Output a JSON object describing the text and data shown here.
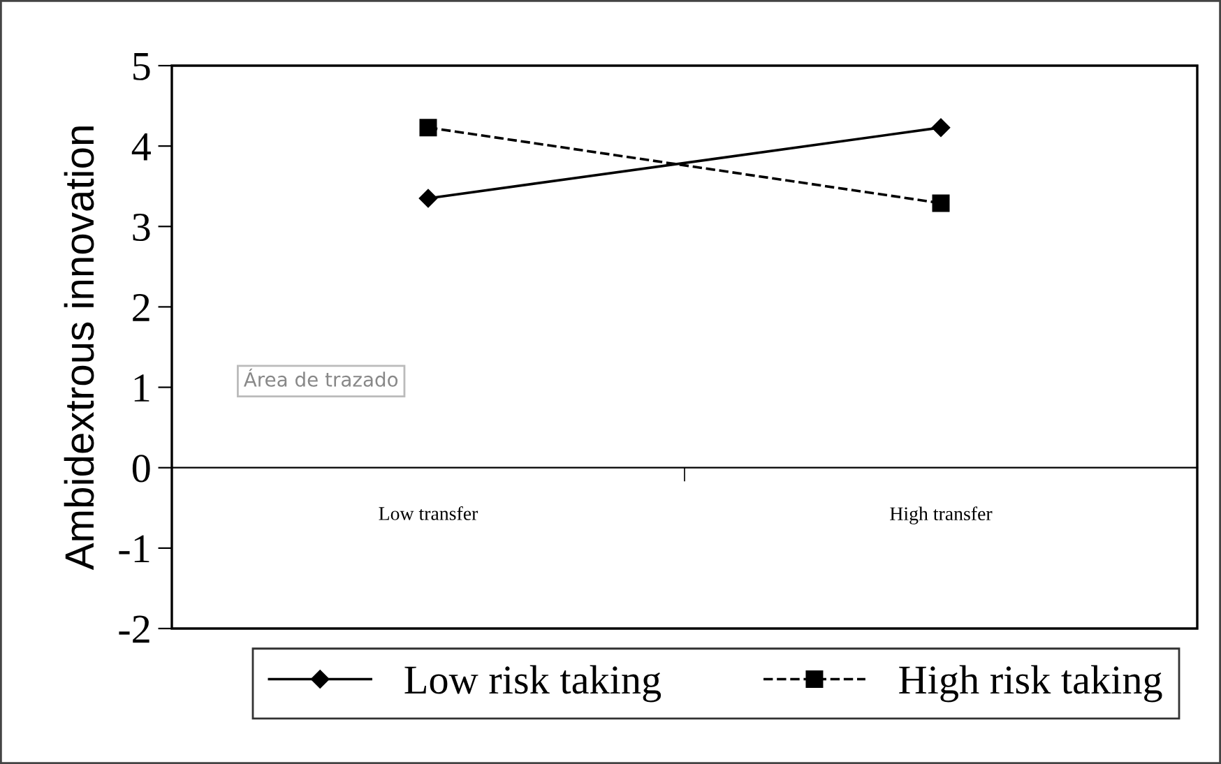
{
  "chart_data": {
    "type": "line",
    "ylabel": "Ambidextrous innovation",
    "categories": [
      "Low transfer",
      "High transfer"
    ],
    "series": [
      {
        "name": "Low risk taking",
        "color": "#000000",
        "values": [
          3.35,
          4.23
        ],
        "marker": "diamond",
        "line_style": "solid"
      },
      {
        "name": "High risk taking",
        "color": "#000000",
        "values": [
          4.23,
          3.29
        ],
        "marker": "square",
        "line_style": "dashed"
      }
    ],
    "ylim": [
      -2,
      5
    ],
    "yticks": [
      -2,
      -1,
      0,
      1,
      2,
      3,
      4,
      5
    ],
    "grid": false,
    "legend": "bottom",
    "annotations": [
      "Área de trazado"
    ]
  }
}
